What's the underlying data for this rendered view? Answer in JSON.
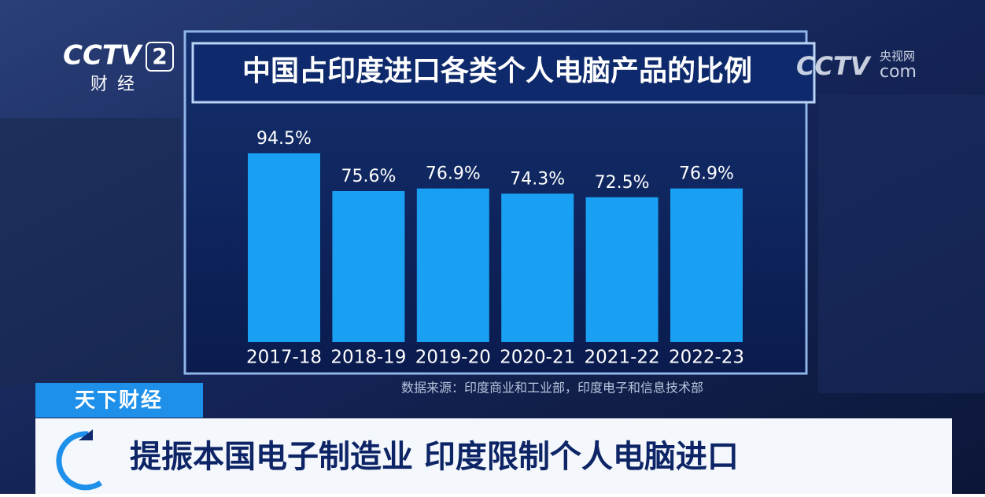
{
  "chart_data": {
    "type": "bar",
    "title": "中国占印度进口各类个人电脑产品的比例",
    "categories": [
      "2017-18",
      "2018-19",
      "2019-20",
      "2020-21",
      "2021-22",
      "2022-23"
    ],
    "values": [
      94.5,
      75.6,
      76.9,
      74.3,
      72.5,
      76.9
    ],
    "value_labels": [
      "94.5%",
      "75.6%",
      "76.9%",
      "74.3%",
      "72.5%",
      "76.9%"
    ],
    "color": "#1aa0f2",
    "source": "数据来源：印度商业和工业部，印度电子和信息技术部"
  },
  "overlay": {
    "channel_logo": "CCTV",
    "channel_number": "2",
    "channel_name": "财经",
    "site_logo_cn": "央视网",
    "site_logo_main": "CCTV",
    "site_logo_suffix": "com",
    "program": "天下财经",
    "headline": "提振本国电子制造业 印度限制个人电脑进口"
  }
}
